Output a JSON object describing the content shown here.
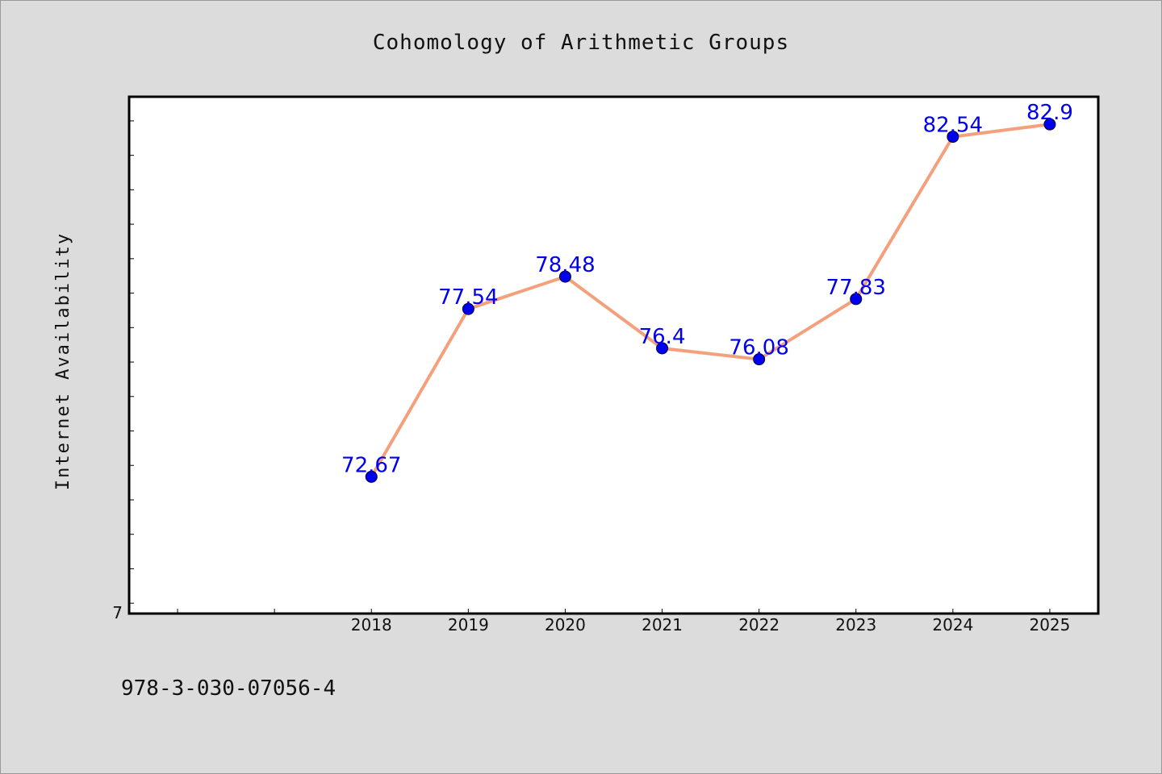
{
  "chart_data": {
    "type": "line",
    "title": "Cohomology of Arithmetic Groups",
    "xlabel": "",
    "ylabel": "Internet Availability",
    "x": [
      "2018",
      "2019",
      "2020",
      "2021",
      "2022",
      "2023",
      "2024",
      "2025"
    ],
    "series": [
      {
        "values": [
          72.67,
          77.54,
          78.48,
          76.4,
          76.08,
          77.83,
          82.54,
          82.9
        ],
        "data_labels": [
          "72.67",
          "77.54",
          "78.48",
          "76.4",
          "76.08",
          "77.83",
          "82.54",
          "82.9"
        ],
        "line_color": "#f4a07c",
        "marker_color": "#0000ee",
        "label_color": "#0000ee"
      }
    ],
    "y_tick_label": "7",
    "ylim": [
      68.7,
      83.7
    ],
    "y_tick_step": 1,
    "xlim": [
      2015.5,
      2025.5
    ],
    "grid": false,
    "background": "#dcdcdc",
    "plot_background": "#ffffff"
  },
  "footer": {
    "isbn": "978-3-030-07056-4"
  }
}
